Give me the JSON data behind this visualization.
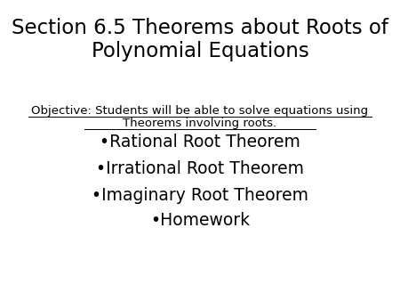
{
  "bg_color": "#ffffff",
  "title_line1": "Section 6.5 Theorems about Roots of",
  "title_line2": "Polynomial Equations",
  "title_fontsize": 16.5,
  "title_color": "#000000",
  "title_fontweight": "normal",
  "objective_line1": "Objective: Students will be able to solve equations using",
  "objective_line2": "Theorems involving roots.",
  "objective_fontsize": 9.5,
  "objective_color": "#000000",
  "bullet_items": [
    "•Rational Root Theorem",
    "•Irrational Root Theorem",
    "•Imaginary Root Theorem",
    "•Homework"
  ],
  "bullet_fontsize": 13.5,
  "bullet_color": "#000000",
  "bullet_fontweight": "normal",
  "underline_color": "#000000"
}
